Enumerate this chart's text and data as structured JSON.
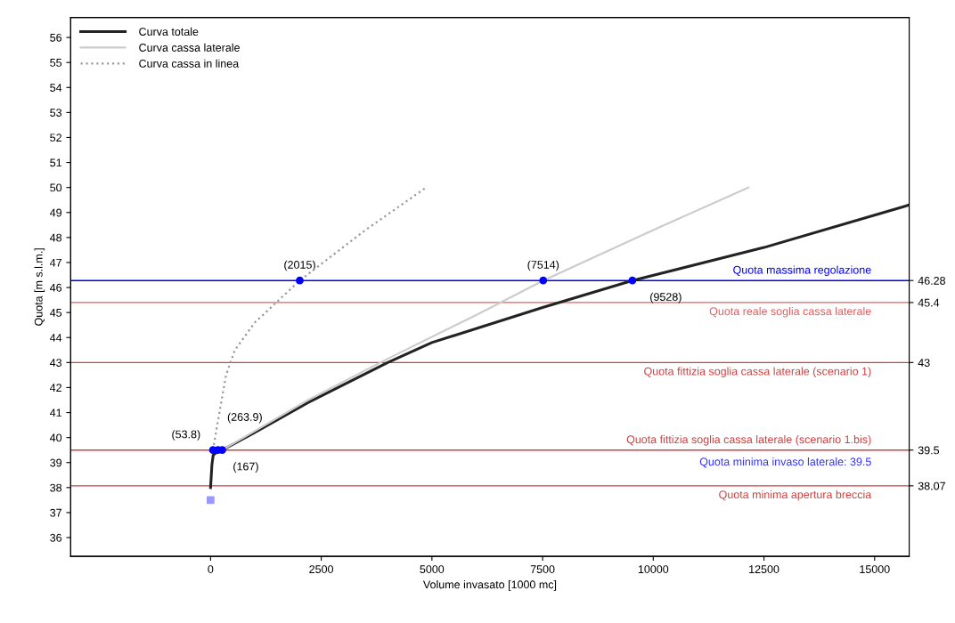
{
  "chart_data": {
    "type": "line",
    "xlabel": "Volume invasato [1000 mc]",
    "ylabel": "Quota [m s.l.m.]",
    "xlim": [
      -3160,
      15780
    ],
    "xticks": [
      0,
      2500,
      5000,
      7500,
      10000,
      12500,
      15000
    ],
    "ylim": [
      35.25,
      56.8
    ],
    "yticks": [
      36,
      37,
      38,
      39,
      40,
      41,
      42,
      43,
      44,
      45,
      46,
      47,
      48,
      49,
      50,
      51,
      52,
      53,
      54,
      55,
      56
    ],
    "y2lim": [
      35.25,
      56.8
    ],
    "y2ticks": [
      46.28,
      45.4,
      43,
      39.5,
      38.07
    ],
    "grid": false,
    "legend": "top left",
    "series": [
      {
        "name": "Curva totale",
        "color": "#222222",
        "line_style": "solid",
        "x": [
          0,
          30,
          60,
          167,
          263.9,
          1000,
          2200,
          4000,
          5000,
          7500,
          9528,
          12500,
          15780
        ],
        "values": [
          38,
          38.9,
          39.3,
          39.45,
          39.5,
          40.2,
          41.4,
          43.0,
          43.8,
          45.2,
          46.28,
          47.6,
          49.3
        ]
      },
      {
        "name": "Curva cassa laterale",
        "color": "#cccccc",
        "line_style": "solid",
        "x": [
          263.9,
          2200,
          4000,
          6000,
          7514,
          10000,
          12150
        ],
        "values": [
          39.5,
          41.5,
          43.15,
          44.9,
          46.28,
          48.3,
          50
        ]
      },
      {
        "name": "Curva cassa in linea",
        "color": "#999999",
        "line_style": "dotted",
        "x": [
          53.8,
          200,
          350,
          550,
          1000,
          2015,
          3500,
          4870
        ],
        "values": [
          39.5,
          41,
          42.5,
          43.5,
          44.6,
          46.28,
          48.3,
          50
        ]
      },
      {
        "type": "scatter",
        "color": "#0000ff",
        "marker": "circle",
        "x": [
          53.8,
          167,
          263.9,
          2015,
          7514,
          9528
        ],
        "values": [
          39.5,
          39.5,
          39.5,
          46.28,
          46.28,
          46.28
        ]
      },
      {
        "type": "scatter",
        "color": "#9999ff",
        "marker": "square",
        "x": [
          0
        ],
        "values": [
          37.5
        ]
      }
    ],
    "ref_lines": [
      {
        "axis": "y",
        "value": 46.28,
        "label": "Quota massima regolazione",
        "color": "#0000ff"
      },
      {
        "axis": "y",
        "value": 45.4,
        "label": "Quota reale soglia cassa laterale",
        "color": "#e06060"
      },
      {
        "axis": "y",
        "value": 43,
        "label": "Quota fittizia soglia cassa laterale (scenario 1)",
        "color": "#d04040"
      },
      {
        "axis": "y",
        "value": 39.5,
        "label": "Quota fittizia soglia cassa laterale (scenario 1.bis)",
        "color": "#d04040"
      },
      {
        "axis": "y",
        "value": 38.07,
        "label": "Quota minima apertura breccia",
        "color": "#d04040"
      }
    ],
    "annotations": [
      {
        "text": "(53.8)",
        "x": 53.8,
        "y": 39.5
      },
      {
        "text": "(167)",
        "x": 167,
        "y": 39.5
      },
      {
        "text": "(263.9)",
        "x": 263.9,
        "y": 39.5
      },
      {
        "text": "(2015)",
        "x": 2015,
        "y": 46.28
      },
      {
        "text": "(7514)",
        "x": 7514,
        "y": 46.28
      },
      {
        "text": "(9528)",
        "x": 9528,
        "y": 46.28
      },
      {
        "text": "Quota minima invaso laterale: 39.5",
        "x": 14930,
        "y": 39.5
      }
    ]
  }
}
